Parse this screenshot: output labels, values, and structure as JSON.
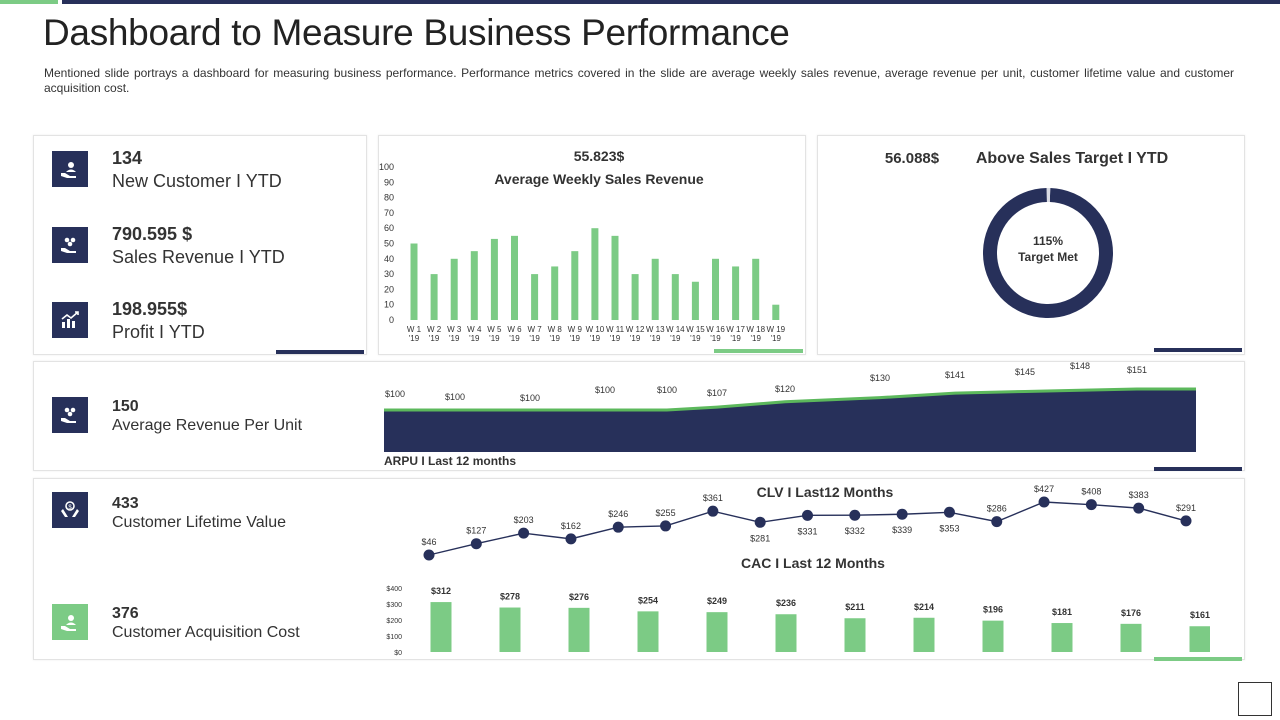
{
  "title": "Dashboard to Measure Business Performance",
  "description": "Mentioned slide portrays a dashboard for measuring business performance. Performance metrics covered in the slide are average weekly sales revenue, average revenue per unit, customer lifetime value and customer acquisition cost.",
  "kpis": [
    {
      "value": "134",
      "label": "New Customer I YTD",
      "icon": "hand-user-icon"
    },
    {
      "value": "790.595 $",
      "label": "Sales Revenue I YTD",
      "icon": "hand-coins-icon"
    },
    {
      "value": "198.955$",
      "label": "Profit I YTD",
      "icon": "growth-chart-icon"
    }
  ],
  "arpu_kpi": {
    "value": "150",
    "label": "Average Revenue  Per Unit",
    "icon": "hand-coins-icon"
  },
  "clv_kpi": {
    "value": "433",
    "label": "Customer  Lifetime Value",
    "icon": "hands-dollar-icon"
  },
  "cac_kpi": {
    "value": "376",
    "label": "Customer Acquisition Cost",
    "icon": "hand-user-icon"
  },
  "weekly": {
    "value_label": "55.823$",
    "title": "Average Weekly Sales Revenue"
  },
  "target": {
    "value_label": "56.088$",
    "title": "Above Sales Target I YTD",
    "percent_label": "115%",
    "center_label": "Target Met"
  },
  "arpu": {
    "caption": "ARPU I Last 12 months"
  },
  "clv": {
    "title": "CLV I Last12 Months"
  },
  "cac": {
    "title": "CAC I Last 12 Months"
  },
  "colors": {
    "navy": "#27305a",
    "green": "#7ccb85",
    "line_green": "#5cb85c"
  },
  "chart_data": [
    {
      "type": "bar",
      "title": "Average Weekly Sales Revenue",
      "categories": [
        "W 1 '19",
        "W 2 '19",
        "W 3 '19",
        "W 4 '19",
        "W 5 '19",
        "W 6 '19",
        "W 7 '19",
        "W 8 '19",
        "W 9 '19",
        "W 10 '19",
        "W 11 '19",
        "W 12 '19",
        "W 13 '19",
        "W 14 '19",
        "W 15 '19",
        "W 16 '19",
        "W 17 '19",
        "W 18 '19",
        "W 19 '19"
      ],
      "values": [
        50,
        30,
        40,
        45,
        53,
        55,
        30,
        35,
        45,
        60,
        55,
        30,
        40,
        30,
        25,
        40,
        35,
        40,
        10
      ],
      "ylim": [
        0,
        100
      ],
      "yticks": [
        0,
        10,
        20,
        30,
        40,
        50,
        60,
        70,
        80,
        90,
        100
      ]
    },
    {
      "type": "pie",
      "title": "Above Sales Target I YTD",
      "values": [
        99,
        1
      ]
    },
    {
      "type": "area",
      "title": "ARPU I Last 12 months",
      "labels": [
        "$100",
        "$100",
        "$100",
        "$100",
        "$100",
        "$107",
        "$120",
        "$130",
        "$141",
        "$145",
        "$148",
        "$151"
      ],
      "values": [
        100,
        100,
        100,
        100,
        100,
        107,
        120,
        130,
        141,
        145,
        148,
        151
      ]
    },
    {
      "type": "line",
      "title": "CLV I Last12 Months",
      "labels": [
        "$46",
        "$127",
        "$203",
        "$162",
        "$246",
        "$255",
        "$361",
        "$281",
        "$331",
        "$332",
        "$339",
        "$353",
        "$286",
        "$427",
        "$408",
        "$383",
        "$291"
      ],
      "values": [
        46,
        127,
        203,
        162,
        246,
        255,
        361,
        281,
        331,
        332,
        339,
        353,
        286,
        427,
        408,
        383,
        291
      ]
    },
    {
      "type": "bar",
      "title": "CAC I Last 12 Months",
      "labels": [
        "$312",
        "$278",
        "$276",
        "$254",
        "$249",
        "$236",
        "$211",
        "$214",
        "$196",
        "$181",
        "$176",
        "$161"
      ],
      "values": [
        312,
        278,
        276,
        254,
        249,
        236,
        211,
        214,
        196,
        181,
        176,
        161
      ],
      "ylim": [
        0,
        400
      ],
      "yticks": [
        "$0",
        "$100",
        "$200",
        "$300",
        "$400"
      ]
    }
  ]
}
